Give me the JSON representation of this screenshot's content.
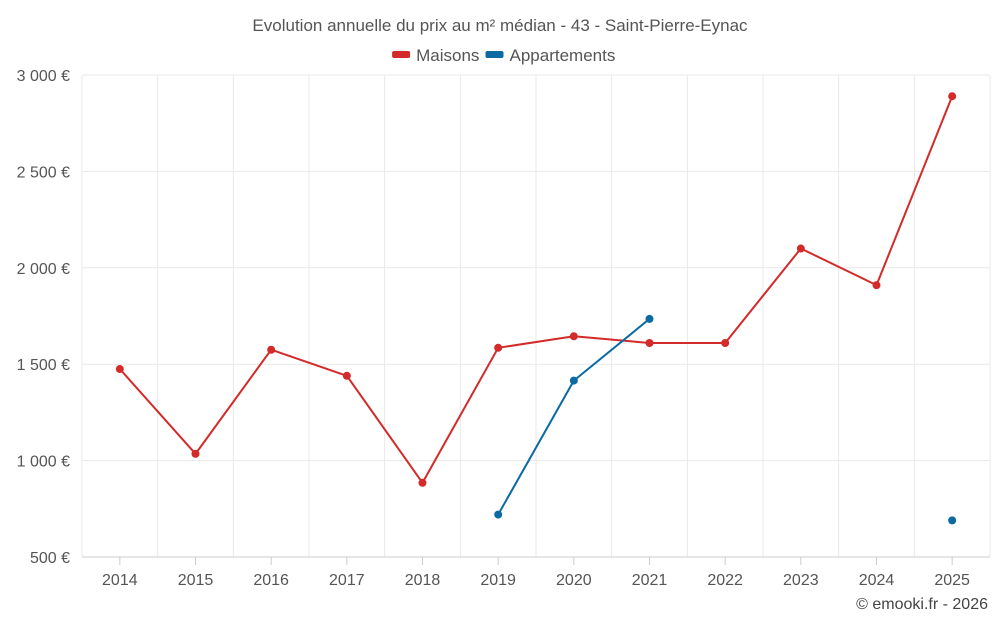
{
  "chart_data": {
    "type": "line",
    "title": "Evolution annuelle du prix au m² médian - 43 - Saint-Pierre-Eynac",
    "credit": "© emooki.fr - 2026",
    "categories": [
      "2014",
      "2015",
      "2016",
      "2017",
      "2018",
      "2019",
      "2020",
      "2021",
      "2022",
      "2023",
      "2024",
      "2025"
    ],
    "ylim": [
      500,
      3000
    ],
    "yticks": [
      500,
      1000,
      1500,
      2000,
      2500,
      3000
    ],
    "ytick_labels": [
      "500 €",
      "1 000 €",
      "1 500 €",
      "2 000 €",
      "2 500 €",
      "3 000 €"
    ],
    "grid": true,
    "legend_position": "top-center",
    "series": [
      {
        "name": "Maisons",
        "color": "#d32a2a",
        "values": [
          1475,
          1035,
          1575,
          1440,
          885,
          1585,
          1645,
          1610,
          1610,
          2100,
          1910,
          2890
        ]
      },
      {
        "name": "Appartements",
        "color": "#0a6aa1",
        "values": [
          null,
          null,
          null,
          null,
          null,
          720,
          1415,
          1735,
          null,
          null,
          null,
          690
        ]
      }
    ]
  }
}
